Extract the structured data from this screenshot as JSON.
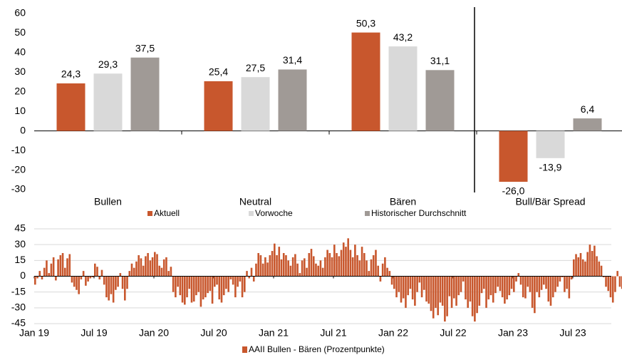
{
  "chart_data": [
    {
      "type": "bar",
      "categories": [
        "Bullen",
        "Neutral",
        "Bären",
        "Bull/Bär Spread"
      ],
      "series": [
        {
          "name": "Aktuell",
          "color": "#c8572d",
          "values": [
            24.3,
            25.4,
            50.3,
            -26.0
          ],
          "value_labels": [
            "24,3",
            "25,4",
            "50,3",
            "-26,0"
          ]
        },
        {
          "name": "Vorwoche",
          "color": "#d9d9d9",
          "values": [
            29.3,
            27.5,
            43.2,
            -13.9
          ],
          "value_labels": [
            "29,3",
            "27,5",
            "43,2",
            "-13,9"
          ]
        },
        {
          "name": "Historischer Durchschnitt",
          "color": "#a09a96",
          "values": [
            37.5,
            31.4,
            31.1,
            6.4
          ],
          "value_labels": [
            "37,5",
            "31,4",
            "31,1",
            "6,4"
          ]
        }
      ],
      "ylim": [
        -30,
        60
      ],
      "yticks": [
        -30,
        -20,
        -10,
        0,
        10,
        20,
        30,
        40,
        50,
        60
      ],
      "grid": false
    },
    {
      "type": "bar",
      "series": [
        {
          "name": "AAII Bullen - Bären (Prozentpunkte)",
          "color": "#c8572d",
          "values": [
            -8,
            -2,
            5,
            -3,
            8,
            15,
            3,
            12,
            18,
            -4,
            16,
            20,
            22,
            8,
            17,
            21,
            -6,
            -10,
            -13,
            -17,
            -3,
            5,
            -9,
            -5,
            -2,
            -1,
            12,
            9,
            -3,
            6,
            -8,
            -20,
            -23,
            -17,
            -25,
            -13,
            -10,
            3,
            -12,
            -23,
            -12,
            5,
            12,
            8,
            14,
            20,
            17,
            10,
            19,
            22,
            15,
            18,
            23,
            21,
            10,
            8,
            16,
            18,
            5,
            9,
            -15,
            -20,
            -10,
            -18,
            -25,
            -27,
            -20,
            -12,
            -25,
            -24,
            -18,
            -15,
            -29,
            -22,
            -20,
            -16,
            -14,
            -26,
            -10,
            -8,
            -22,
            -25,
            -18,
            -12,
            -15,
            -3,
            -8,
            -20,
            -10,
            -5,
            -20,
            -15,
            5,
            -2,
            8,
            -5,
            12,
            22,
            20,
            12,
            18,
            13,
            20,
            24,
            31,
            20,
            28,
            16,
            22,
            20,
            15,
            10,
            18,
            21,
            12,
            3,
            15,
            17,
            8,
            22,
            26,
            19,
            12,
            10,
            15,
            8,
            18,
            25,
            22,
            18,
            30,
            22,
            19,
            25,
            32,
            28,
            36,
            25,
            18,
            30,
            20,
            15,
            28,
            22,
            15,
            5,
            16,
            20,
            25,
            10,
            -5,
            12,
            18,
            8,
            5,
            -8,
            -12,
            -20,
            -15,
            -25,
            -21,
            -30,
            -18,
            -12,
            -22,
            -28,
            -15,
            -6,
            -20,
            -13,
            -24,
            -26,
            -33,
            -40,
            -30,
            -37,
            -25,
            -28,
            -43,
            -38,
            -19,
            -30,
            -21,
            -28,
            -18,
            -15,
            -5,
            -22,
            -30,
            -24,
            -38,
            -43,
            -35,
            -28,
            -16,
            -12,
            -30,
            -22,
            -18,
            -25,
            -16,
            -10,
            -14,
            -20,
            -26,
            -22,
            -18,
            -12,
            -15,
            -5,
            3,
            -8,
            -20,
            -21,
            -10,
            -15,
            -30,
            -35,
            -15,
            -20,
            -13,
            -8,
            -12,
            -24,
            -28,
            -20,
            -15,
            -10,
            -5,
            -1,
            -15,
            -12,
            -21,
            -3,
            16,
            21,
            18,
            22,
            16,
            14,
            23,
            30,
            24,
            29,
            19,
            14,
            10,
            -1,
            -10,
            -14,
            -20,
            -25,
            -15,
            5,
            -10,
            -12,
            -16,
            -8,
            -23,
            -28
          ]
        }
      ],
      "xlim": [
        0,
        260
      ],
      "xticks": [
        {
          "value": 0,
          "label": "Jan 19"
        },
        {
          "value": 26,
          "label": "Jul 19"
        },
        {
          "value": 52,
          "label": "Jan 20"
        },
        {
          "value": 78,
          "label": "Jul 20"
        },
        {
          "value": 104,
          "label": "Jan 21"
        },
        {
          "value": 130,
          "label": "Jul 21"
        },
        {
          "value": 156,
          "label": "Jan 22"
        },
        {
          "value": 182,
          "label": "Jul 22"
        },
        {
          "value": 208,
          "label": "Jan 23"
        },
        {
          "value": 234,
          "label": "Jul 23"
        }
      ],
      "ylim": [
        -45,
        45
      ],
      "yticks": [
        -45,
        -30,
        -15,
        0,
        15,
        30,
        45
      ],
      "grid": true
    }
  ]
}
